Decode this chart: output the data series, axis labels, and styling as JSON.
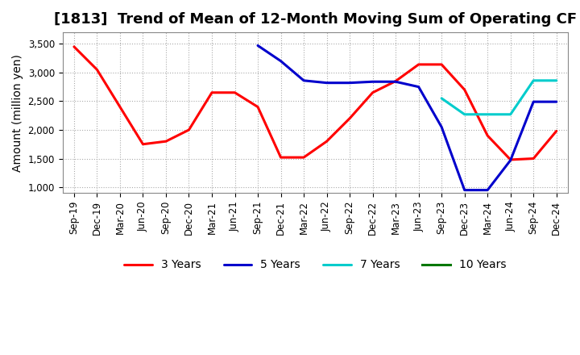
{
  "title": "[1813]  Trend of Mean of 12-Month Moving Sum of Operating CF",
  "ylabel": "Amount (million yen)",
  "xlabels": [
    "Sep-19",
    "Dec-19",
    "Mar-20",
    "Jun-20",
    "Sep-20",
    "Dec-20",
    "Mar-21",
    "Jun-21",
    "Sep-21",
    "Dec-21",
    "Mar-22",
    "Jun-22",
    "Sep-22",
    "Dec-22",
    "Mar-23",
    "Jun-23",
    "Sep-23",
    "Dec-23",
    "Mar-24",
    "Jun-24",
    "Sep-24",
    "Dec-24"
  ],
  "ylim": [
    900,
    3700
  ],
  "yticks": [
    1000,
    1500,
    2000,
    2500,
    3000,
    3500
  ],
  "series": {
    "3 Years": {
      "color": "#ff0000",
      "x_indices": [
        0,
        1,
        2,
        3,
        4,
        5,
        6,
        7,
        8,
        9,
        10,
        11,
        12,
        13,
        14,
        15,
        16,
        17,
        18,
        19,
        20,
        21
      ],
      "y": [
        3450,
        3050,
        2400,
        1750,
        1800,
        2000,
        2650,
        2650,
        2400,
        1520,
        1520,
        1800,
        2200,
        2650,
        2850,
        3140,
        3140,
        2700,
        1900,
        1480,
        1500,
        1980
      ]
    },
    "5 Years": {
      "color": "#0000cc",
      "x_indices": [
        8,
        9,
        10,
        11,
        12,
        13,
        14,
        15,
        16,
        17,
        18,
        19,
        20,
        21
      ],
      "y": [
        3470,
        3200,
        2860,
        2820,
        2820,
        2840,
        2840,
        2750,
        2050,
        950,
        950,
        1470,
        2490,
        2490
      ]
    },
    "7 Years": {
      "color": "#00cccc",
      "x_indices": [
        16,
        17,
        18,
        19,
        20,
        21
      ],
      "y": [
        2550,
        2270,
        2270,
        2270,
        2860,
        2860
      ]
    },
    "10 Years": {
      "color": "#007700",
      "x_indices": [],
      "y": []
    }
  },
  "background_color": "#ffffff",
  "grid_color": "#aaaaaa",
  "title_fontsize": 13,
  "legend_fontsize": 10,
  "tick_fontsize": 8.5
}
